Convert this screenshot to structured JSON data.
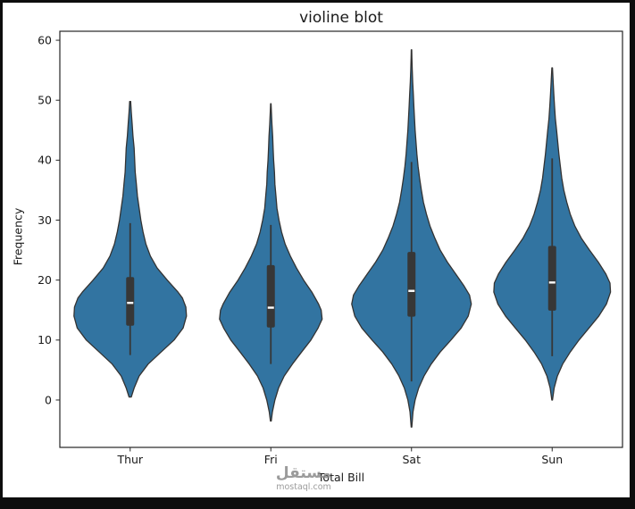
{
  "window": {
    "background": "#0d0d0d",
    "figure_background": "#ffffff"
  },
  "watermark": {
    "arabic": "مستقل",
    "domain": "mostaql.com"
  },
  "chart_data": {
    "type": "violin",
    "title": "violine blot",
    "xlabel": "Total Bill",
    "ylabel": "Frequency",
    "categories": [
      "Thur",
      "Fri",
      "Sat",
      "Sun"
    ],
    "yticks": [
      0,
      10,
      20,
      30,
      40,
      50,
      60
    ],
    "ylim": [
      -7.9,
      61.5
    ],
    "grid": false,
    "legend": false,
    "colors": {
      "violin_fill": "#3274a1",
      "violin_edge": "#333333",
      "box": "#373737",
      "median": "#ffffff",
      "axes_edge": "#262626",
      "text": "#1a1a1a"
    },
    "violins": [
      {
        "category": "Thur",
        "width": 0.8,
        "min": 0.5,
        "max": 49.8,
        "median": 16.2,
        "q1": 12.4,
        "q3": 20.5,
        "whisker_low": 7.5,
        "whisker_high": 29.5,
        "profile": [
          [
            0.5,
            0.02
          ],
          [
            2,
            0.07
          ],
          [
            4,
            0.16
          ],
          [
            6,
            0.32
          ],
          [
            8,
            0.55
          ],
          [
            10,
            0.78
          ],
          [
            12,
            0.94
          ],
          [
            14,
            1.0
          ],
          [
            15.5,
            0.99
          ],
          [
            17,
            0.93
          ],
          [
            18,
            0.85
          ],
          [
            20,
            0.66
          ],
          [
            22,
            0.48
          ],
          [
            24,
            0.36
          ],
          [
            26,
            0.28
          ],
          [
            28,
            0.23
          ],
          [
            30,
            0.19
          ],
          [
            32,
            0.16
          ],
          [
            34,
            0.13
          ],
          [
            36,
            0.11
          ],
          [
            38,
            0.09
          ],
          [
            40,
            0.08
          ],
          [
            42,
            0.07
          ],
          [
            44,
            0.05
          ],
          [
            46,
            0.035
          ],
          [
            48,
            0.02
          ],
          [
            49.8,
            0.008
          ]
        ]
      },
      {
        "category": "Fri",
        "width": 0.73,
        "min": -3.5,
        "max": 49.4,
        "median": 15.4,
        "q1": 12.1,
        "q3": 22.5,
        "whisker_low": 6.0,
        "whisker_high": 29.2,
        "profile": [
          [
            -3.5,
            0.008
          ],
          [
            -2,
            0.03
          ],
          [
            0,
            0.08
          ],
          [
            2,
            0.15
          ],
          [
            4,
            0.26
          ],
          [
            6,
            0.42
          ],
          [
            8,
            0.6
          ],
          [
            10,
            0.78
          ],
          [
            12,
            0.92
          ],
          [
            13.5,
            1.0
          ],
          [
            15,
            0.98
          ],
          [
            16,
            0.93
          ],
          [
            18,
            0.8
          ],
          [
            20,
            0.64
          ],
          [
            22,
            0.5
          ],
          [
            24,
            0.38
          ],
          [
            26,
            0.28
          ],
          [
            28,
            0.21
          ],
          [
            30,
            0.16
          ],
          [
            32,
            0.12
          ],
          [
            34,
            0.1
          ],
          [
            36,
            0.08
          ],
          [
            38,
            0.07
          ],
          [
            40,
            0.055
          ],
          [
            42,
            0.045
          ],
          [
            44,
            0.035
          ],
          [
            46,
            0.022
          ],
          [
            48,
            0.012
          ],
          [
            49.4,
            0.005
          ]
        ]
      },
      {
        "category": "Sat",
        "width": 0.85,
        "min": -4.5,
        "max": 58.4,
        "median": 18.2,
        "q1": 13.9,
        "q3": 24.7,
        "whisker_low": 3.1,
        "whisker_high": 39.7,
        "profile": [
          [
            -4.5,
            0.005
          ],
          [
            -2,
            0.025
          ],
          [
            0,
            0.06
          ],
          [
            2,
            0.12
          ],
          [
            4,
            0.21
          ],
          [
            6,
            0.33
          ],
          [
            8,
            0.48
          ],
          [
            10,
            0.66
          ],
          [
            12,
            0.83
          ],
          [
            14,
            0.95
          ],
          [
            16,
            1.0
          ],
          [
            17.5,
            0.97
          ],
          [
            19,
            0.88
          ],
          [
            21,
            0.74
          ],
          [
            23,
            0.6
          ],
          [
            25,
            0.48
          ],
          [
            27,
            0.39
          ],
          [
            29,
            0.31
          ],
          [
            31,
            0.25
          ],
          [
            33,
            0.2
          ],
          [
            35,
            0.165
          ],
          [
            37,
            0.135
          ],
          [
            39,
            0.11
          ],
          [
            41,
            0.09
          ],
          [
            43,
            0.075
          ],
          [
            45,
            0.06
          ],
          [
            47,
            0.05
          ],
          [
            49,
            0.04
          ],
          [
            51,
            0.03
          ],
          [
            53,
            0.02
          ],
          [
            55,
            0.013
          ],
          [
            57,
            0.007
          ],
          [
            58.4,
            0.003
          ]
        ]
      },
      {
        "category": "Sun",
        "width": 0.83,
        "min": 0.0,
        "max": 55.4,
        "median": 19.6,
        "q1": 14.9,
        "q3": 25.7,
        "whisker_low": 7.3,
        "whisker_high": 40.3,
        "profile": [
          [
            0,
            0.006
          ],
          [
            2,
            0.035
          ],
          [
            4,
            0.09
          ],
          [
            6,
            0.18
          ],
          [
            8,
            0.31
          ],
          [
            10,
            0.46
          ],
          [
            12,
            0.63
          ],
          [
            14,
            0.8
          ],
          [
            16,
            0.93
          ],
          [
            18,
            1.0
          ],
          [
            19.5,
            0.99
          ],
          [
            21,
            0.92
          ],
          [
            23,
            0.79
          ],
          [
            25,
            0.64
          ],
          [
            27,
            0.5
          ],
          [
            29,
            0.39
          ],
          [
            31,
            0.31
          ],
          [
            33,
            0.25
          ],
          [
            35,
            0.2
          ],
          [
            37,
            0.165
          ],
          [
            39,
            0.14
          ],
          [
            41,
            0.115
          ],
          [
            43,
            0.095
          ],
          [
            45,
            0.075
          ],
          [
            47,
            0.055
          ],
          [
            49,
            0.04
          ],
          [
            51,
            0.028
          ],
          [
            53,
            0.017
          ],
          [
            55.4,
            0.006
          ]
        ]
      }
    ]
  }
}
